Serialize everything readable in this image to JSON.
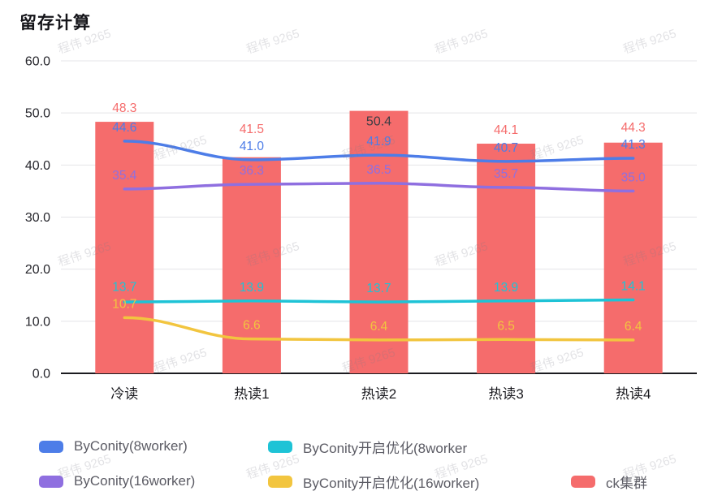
{
  "page": {
    "title": "留存计算"
  },
  "watermark": {
    "text": "程伟 9265"
  },
  "chart_data": {
    "type": "combo",
    "title": "留存计算",
    "categories": [
      "冷读",
      "热读1",
      "热读2",
      "热读3",
      "热读4"
    ],
    "y_axis": {
      "min": 0,
      "max": 60,
      "tick_step": 10,
      "tick_labels": [
        "0.0",
        "10.0",
        "20.0",
        "30.0",
        "40.0",
        "50.0",
        "60.0"
      ]
    },
    "grid": true,
    "legend_position": "bottom",
    "series": [
      {
        "name": "ck集群",
        "type": "bar",
        "color": "#f56c6c",
        "values": [
          48.3,
          41.5,
          50.4,
          44.1,
          44.3
        ],
        "label_inside": [
          false,
          false,
          true,
          false,
          false
        ],
        "inside_label_color": "#3d3d44"
      },
      {
        "name": "ByConity(8worker)",
        "type": "line",
        "color": "#4d7de8",
        "values": [
          44.6,
          41.0,
          41.9,
          40.7,
          41.3
        ]
      },
      {
        "name": "ByConity(16worker)",
        "type": "line",
        "color": "#8f6fe0",
        "values": [
          35.4,
          36.3,
          36.5,
          35.7,
          35.0
        ]
      },
      {
        "name": "ByConity开启优化(8worker",
        "type": "line",
        "color": "#1ec3d6",
        "values": [
          13.7,
          13.9,
          13.7,
          13.9,
          14.1
        ]
      },
      {
        "name": "ByConity开启优化(16worker)",
        "type": "line",
        "color": "#f2c53f",
        "values": [
          10.7,
          6.6,
          6.4,
          6.5,
          6.4
        ]
      }
    ],
    "legend": [
      {
        "label": "ByConity(8worker)",
        "color": "#4d7de8"
      },
      {
        "label": "ByConity开启优化(8worker",
        "color": "#1ec3d6"
      },
      {
        "label": "ByConity(16worker)",
        "color": "#8f6fe0"
      },
      {
        "label": "ByConity开启优化(16worker)",
        "color": "#f2c53f"
      },
      {
        "label": "ck集群",
        "color": "#f56c6c"
      }
    ]
  }
}
